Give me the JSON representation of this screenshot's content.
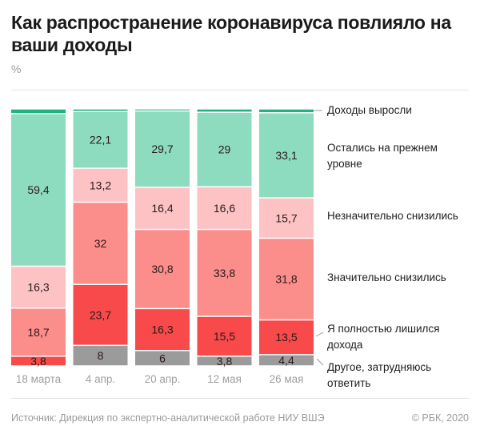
{
  "header": {
    "title": "Как распространение коронавируса повлияло на ваши доходы",
    "unit": "%"
  },
  "footer": {
    "source": "Источник: Дирекция по экспертно-аналитической работе НИУ ВШЭ",
    "copyright": "© РБК, 2020"
  },
  "chart_data": {
    "type": "bar",
    "stacked": true,
    "orientation": "vertical",
    "title": "Как распространение коронавируса повлияло на ваши доходы",
    "ylabel": "%",
    "ylim": [
      0,
      100
    ],
    "grid": false,
    "legend_position": "right",
    "categories": [
      "18 марта",
      "4 апр.",
      "20 апр.",
      "12 мая",
      "26 мая"
    ],
    "series": [
      {
        "key": "other",
        "name": "Другое, затрудняюсь ответить",
        "legend_lines": [
          "Другое, затрудняюсь",
          "ответить"
        ],
        "color": "#9b9b9b",
        "values": [
          0,
          8,
          6,
          3.8,
          4.4
        ],
        "labels": [
          "",
          "8",
          "6",
          "3,8",
          "4,4"
        ]
      },
      {
        "key": "lost",
        "name": "Я полностью лишился дохода",
        "legend_lines": [
          "Я полностью лишился",
          "дохода"
        ],
        "color": "#f84a4a",
        "values": [
          3.8,
          23.7,
          16.3,
          15.5,
          13.5
        ],
        "labels": [
          "3,8",
          "23,7",
          "16,3",
          "15,5",
          "13,5"
        ]
      },
      {
        "key": "much",
        "name": "Значительно снизились",
        "legend_lines": [
          "Значительно снизились"
        ],
        "color": "#fb8d8b",
        "values": [
          18.7,
          32,
          30.8,
          33.8,
          31.8
        ],
        "labels": [
          "18,7",
          "32",
          "30,8",
          "33,8",
          "31,8"
        ]
      },
      {
        "key": "slight",
        "name": "Незначительно снизились",
        "legend_lines": [
          "Незначительно снизились"
        ],
        "color": "#fdc3c4",
        "values": [
          16.3,
          13.2,
          16.4,
          16.6,
          15.7
        ],
        "labels": [
          "16,3",
          "13,2",
          "16,4",
          "16,6",
          "15,7"
        ]
      },
      {
        "key": "same",
        "name": "Остались на прежнем уровне",
        "legend_lines": [
          "Остались на прежнем",
          "уровне"
        ],
        "color": "#8ddcc0",
        "values": [
          59.4,
          22.1,
          29.7,
          29,
          33.1
        ],
        "labels": [
          "59,4",
          "22,1",
          "29,7",
          "29",
          "33,1"
        ]
      },
      {
        "key": "grew",
        "name": "Доходы выросли",
        "legend_lines": [
          "Доходы выросли"
        ],
        "color": "#1fb382",
        "values": [
          1.8,
          1.0,
          0.8,
          1.3,
          1.5
        ],
        "labels": [
          "",
          "",
          "",
          "",
          ""
        ]
      }
    ]
  }
}
